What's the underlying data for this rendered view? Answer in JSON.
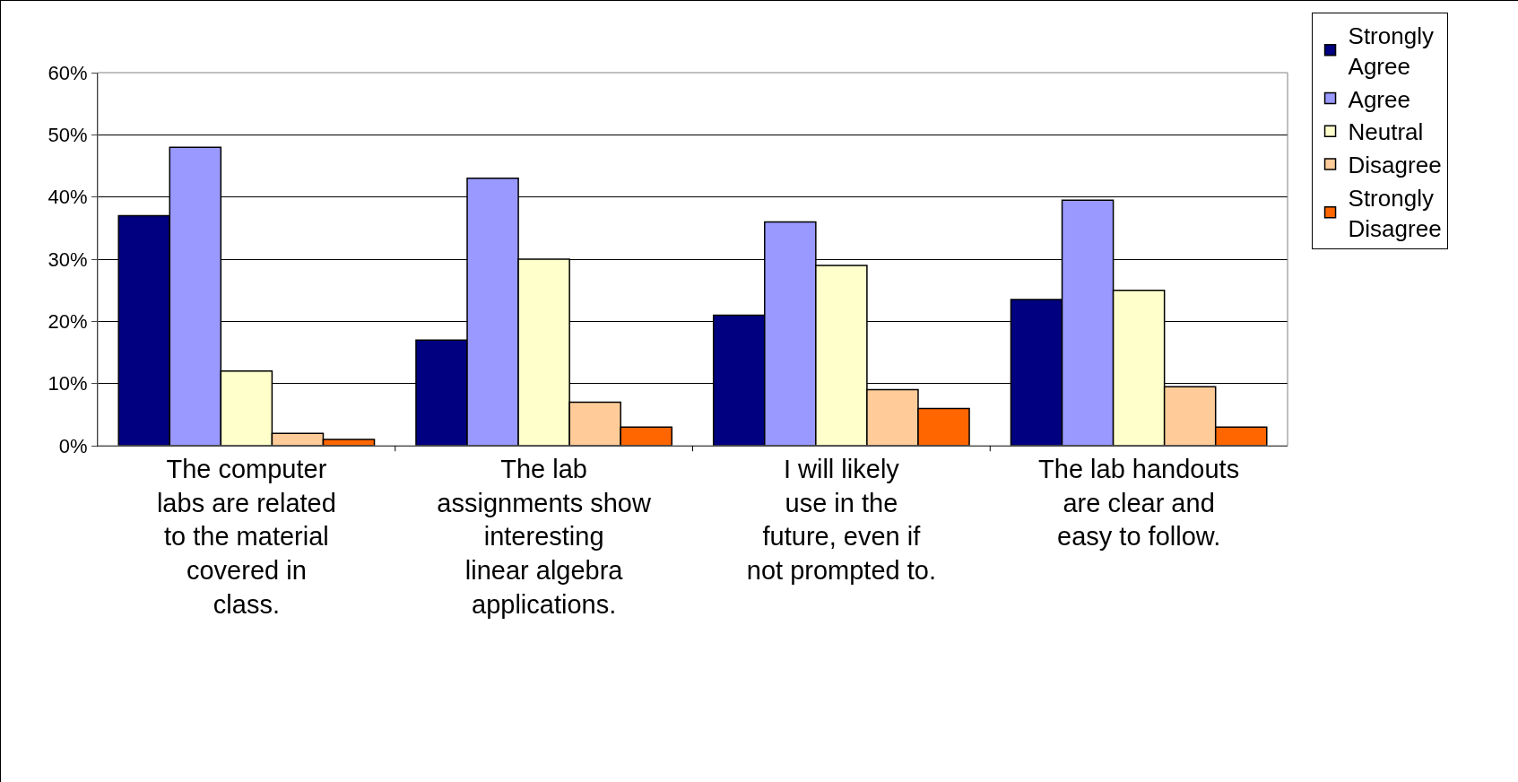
{
  "chart_data": {
    "type": "bar",
    "categories": [
      "The computer labs are related to the material covered in class.",
      "The lab assignments show interesting linear algebra applications.",
      "I will likely use in the future, even if not prompted to.",
      "The lab handouts are clear and easy to follow."
    ],
    "series": [
      {
        "name": "Strongly Agree",
        "color": "#000080",
        "values": [
          37,
          17,
          21,
          23.5
        ]
      },
      {
        "name": "Agree",
        "color": "#9999ff",
        "values": [
          48,
          43,
          36,
          39.5
        ]
      },
      {
        "name": "Neutral",
        "color": "#ffffcc",
        "values": [
          12,
          30,
          29,
          25
        ]
      },
      {
        "name": "Disagree",
        "color": "#ffcc99",
        "values": [
          2,
          7,
          9,
          9.5
        ]
      },
      {
        "name": "Strongly Disagree",
        "color": "#ff6600",
        "values": [
          1,
          3,
          6,
          3
        ]
      }
    ],
    "ylim": [
      0,
      60
    ],
    "yticks": [
      {
        "value": 0,
        "label": "0%"
      },
      {
        "value": 10,
        "label": "10%"
      },
      {
        "value": 20,
        "label": "20%"
      },
      {
        "value": 30,
        "label": "30%"
      },
      {
        "value": 40,
        "label": "40%"
      },
      {
        "value": 50,
        "label": "50%"
      },
      {
        "value": 60,
        "label": "60%"
      }
    ],
    "grid": "y",
    "legend": "right"
  }
}
